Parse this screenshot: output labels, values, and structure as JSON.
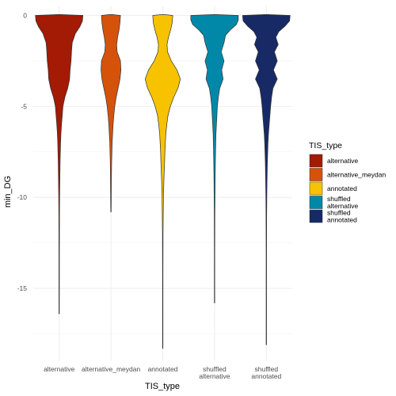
{
  "chart_data": {
    "type": "violin",
    "title": "",
    "xlabel": "TIS_type",
    "ylabel": "min_DG",
    "ylim": [
      -19,
      0.5
    ],
    "yticks": [
      0,
      -5,
      -10,
      -15
    ],
    "grid": true,
    "legend": {
      "title": "TIS_type",
      "position": "right",
      "entries": [
        {
          "label": [
            "alternative"
          ],
          "color": "#A31A05"
        },
        {
          "label": [
            "alternative_meydan"
          ],
          "color": "#D5520B"
        },
        {
          "label": [
            "annotated"
          ],
          "color": "#F7C200"
        },
        {
          "label": [
            "shuffled",
            "alternative"
          ],
          "color": "#0188A8"
        },
        {
          "label": [
            "shuffled",
            "annotated"
          ],
          "color": "#172A66"
        }
      ]
    },
    "series": [
      {
        "name": "alternative",
        "x_label": [
          "alternative"
        ],
        "color": "#A31A05",
        "min": -16.4,
        "max": 0.05,
        "density": [
          [
            0.05,
            0.05
          ],
          [
            0.0,
            1.0
          ],
          [
            -0.3,
            0.98
          ],
          [
            -0.6,
            0.88
          ],
          [
            -1.0,
            0.68
          ],
          [
            -1.5,
            0.55
          ],
          [
            -2.0,
            0.52
          ],
          [
            -2.5,
            0.5
          ],
          [
            -3.0,
            0.46
          ],
          [
            -3.5,
            0.44
          ],
          [
            -4.0,
            0.36
          ],
          [
            -4.5,
            0.24
          ],
          [
            -5.0,
            0.16
          ],
          [
            -5.5,
            0.13
          ],
          [
            -6.0,
            0.1
          ],
          [
            -6.5,
            0.075
          ],
          [
            -7.0,
            0.06
          ],
          [
            -8.0,
            0.04
          ],
          [
            -9.0,
            0.03
          ],
          [
            -10.0,
            0.02
          ],
          [
            -11.0,
            0.014
          ],
          [
            -13.0,
            0.01
          ],
          [
            -16.4,
            0.008
          ]
        ]
      },
      {
        "name": "alternative_meydan",
        "x_label": [
          "alternative_meydan"
        ],
        "color": "#D5520B",
        "min": -10.8,
        "max": 0.05,
        "density": [
          [
            0.05,
            0.05
          ],
          [
            0.0,
            0.4
          ],
          [
            -0.4,
            0.38
          ],
          [
            -0.8,
            0.34
          ],
          [
            -1.2,
            0.28
          ],
          [
            -1.6,
            0.24
          ],
          [
            -2.0,
            0.26
          ],
          [
            -2.5,
            0.4
          ],
          [
            -3.0,
            0.42
          ],
          [
            -3.5,
            0.38
          ],
          [
            -4.0,
            0.3
          ],
          [
            -4.5,
            0.22
          ],
          [
            -5.0,
            0.16
          ],
          [
            -5.5,
            0.12
          ],
          [
            -6.0,
            0.09
          ],
          [
            -6.5,
            0.07
          ],
          [
            -7.0,
            0.05
          ],
          [
            -8.0,
            0.03
          ],
          [
            -9.0,
            0.02
          ],
          [
            -10.0,
            0.014
          ],
          [
            -10.8,
            0.008
          ]
        ]
      },
      {
        "name": "annotated",
        "x_label": [
          "annotated"
        ],
        "color": "#F7C200",
        "min": -18.3,
        "max": 0.05,
        "density": [
          [
            0.05,
            0.05
          ],
          [
            0.0,
            0.42
          ],
          [
            -0.4,
            0.4
          ],
          [
            -0.8,
            0.33
          ],
          [
            -1.2,
            0.24
          ],
          [
            -1.6,
            0.18
          ],
          [
            -2.0,
            0.2
          ],
          [
            -2.5,
            0.36
          ],
          [
            -3.0,
            0.6
          ],
          [
            -3.5,
            0.74
          ],
          [
            -4.0,
            0.64
          ],
          [
            -4.5,
            0.46
          ],
          [
            -5.0,
            0.32
          ],
          [
            -5.5,
            0.22
          ],
          [
            -6.0,
            0.17
          ],
          [
            -6.5,
            0.13
          ],
          [
            -7.0,
            0.11
          ],
          [
            -7.5,
            0.09
          ],
          [
            -8.0,
            0.08
          ],
          [
            -9.0,
            0.05
          ],
          [
            -10.0,
            0.03
          ],
          [
            -11.0,
            0.02
          ],
          [
            -12.0,
            0.012
          ],
          [
            -14.0,
            0.009
          ],
          [
            -18.3,
            0.008
          ]
        ]
      },
      {
        "name": "shuffled alternative",
        "x_label": [
          "shuffled",
          "alternative"
        ],
        "color": "#0188A8",
        "min": -15.8,
        "max": 0.05,
        "density": [
          [
            0.05,
            0.05
          ],
          [
            0.0,
            1.0
          ],
          [
            -0.25,
            1.0
          ],
          [
            -0.5,
            0.92
          ],
          [
            -0.8,
            0.66
          ],
          [
            -1.1,
            0.46
          ],
          [
            -1.5,
            0.4
          ],
          [
            -2.0,
            0.28
          ],
          [
            -2.5,
            0.4
          ],
          [
            -3.0,
            0.3
          ],
          [
            -3.5,
            0.36
          ],
          [
            -4.0,
            0.22
          ],
          [
            -4.5,
            0.16
          ],
          [
            -5.0,
            0.12
          ],
          [
            -5.5,
            0.1
          ],
          [
            -6.0,
            0.08
          ],
          [
            -6.5,
            0.06
          ],
          [
            -7.0,
            0.05
          ],
          [
            -8.0,
            0.035
          ],
          [
            -9.0,
            0.025
          ],
          [
            -10.0,
            0.018
          ],
          [
            -11.0,
            0.012
          ],
          [
            -13.0,
            0.009
          ],
          [
            -15.8,
            0.008
          ]
        ]
      },
      {
        "name": "shuffled annotated",
        "x_label": [
          "shuffled",
          "annotated"
        ],
        "color": "#172A66",
        "min": -18.1,
        "max": 0.05,
        "density": [
          [
            0.05,
            0.05
          ],
          [
            0.0,
            1.0
          ],
          [
            -0.3,
            0.98
          ],
          [
            -0.6,
            0.78
          ],
          [
            -0.9,
            0.52
          ],
          [
            -1.2,
            0.4
          ],
          [
            -1.6,
            0.5
          ],
          [
            -2.0,
            0.34
          ],
          [
            -2.5,
            0.46
          ],
          [
            -3.0,
            0.3
          ],
          [
            -3.5,
            0.46
          ],
          [
            -4.0,
            0.28
          ],
          [
            -4.5,
            0.22
          ],
          [
            -5.0,
            0.18
          ],
          [
            -5.5,
            0.15
          ],
          [
            -6.0,
            0.12
          ],
          [
            -6.5,
            0.09
          ],
          [
            -7.0,
            0.07
          ],
          [
            -8.0,
            0.045
          ],
          [
            -9.0,
            0.03
          ],
          [
            -10.0,
            0.02
          ],
          [
            -11.0,
            0.013
          ],
          [
            -13.0,
            0.009
          ],
          [
            -18.1,
            0.008
          ]
        ]
      }
    ]
  }
}
